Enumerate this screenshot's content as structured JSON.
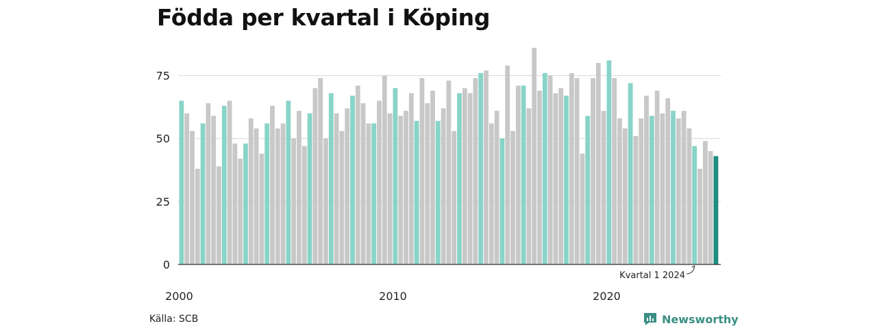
{
  "title": "Födda per kvartal i Köping",
  "source": "Källa: SCB",
  "brand": {
    "name": "Newsworthy",
    "icon": "newsworthy-logo-icon"
  },
  "annotation": "Kvartal 1 2024",
  "colors": {
    "q1": "#88d4c8",
    "other": "#c8c8c8",
    "latest": "#1e8c80",
    "brand": "#3a8f84"
  },
  "chart_data": {
    "type": "bar",
    "title": "Födda per kvartal i Köping",
    "xlabel": "",
    "ylabel": "",
    "ylim": [
      0,
      86
    ],
    "yticks": [
      0,
      25,
      50,
      75
    ],
    "xtick_labels": [
      "2000",
      "2010",
      "2020"
    ],
    "grid": true,
    "start": "2000 Q1",
    "end": "2024 Q1",
    "values": [
      65,
      60,
      53,
      38,
      56,
      64,
      59,
      39,
      63,
      65,
      48,
      42,
      48,
      58,
      54,
      44,
      56,
      63,
      54,
      56,
      65,
      50,
      61,
      47,
      60,
      70,
      74,
      50,
      68,
      60,
      53,
      62,
      67,
      71,
      64,
      56,
      56,
      65,
      75,
      60,
      70,
      59,
      61,
      68,
      57,
      74,
      64,
      69,
      57,
      62,
      73,
      53,
      68,
      70,
      68,
      74,
      76,
      77,
      56,
      61,
      50,
      79,
      53,
      71,
      71,
      62,
      86,
      69,
      76,
      75,
      68,
      70,
      67,
      76,
      74,
      44,
      59,
      74,
      80,
      61,
      81,
      74,
      58,
      54,
      72,
      51,
      58,
      67,
      59,
      69,
      60,
      66,
      61,
      58,
      61,
      54,
      47,
      38,
      49,
      45,
      43
    ]
  }
}
